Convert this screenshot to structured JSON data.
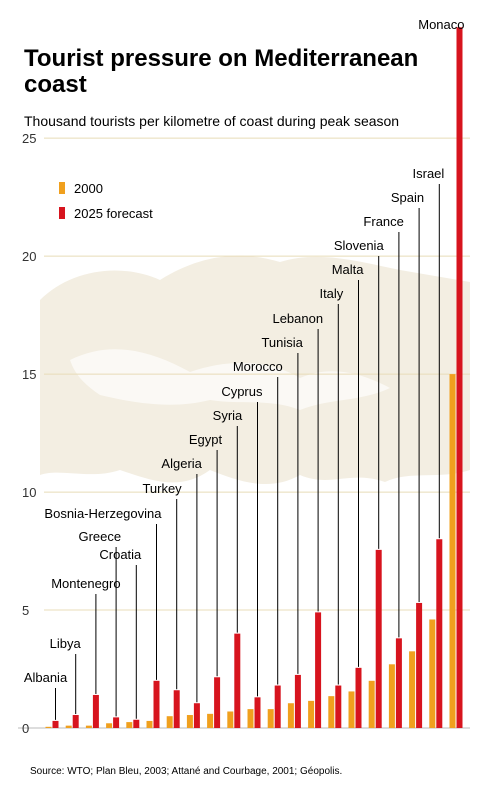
{
  "chart_data": {
    "type": "bar",
    "title": "Tourist pressure on Mediterranean coast",
    "subtitle": "Thousand tourists per kilometre of coast during peak season",
    "source": "Source: WTO; Plan Bleu, 2003; Attané and Courbage, 2001; Géopolis.",
    "ylim": [
      0,
      29.5
    ],
    "yticks": [
      0,
      5,
      10,
      15,
      20,
      25
    ],
    "grid": true,
    "legend_position": "top-left",
    "categories": [
      "Albania",
      "Libya",
      "Montenegro",
      "Greece",
      "Croatia",
      "Bosnia-Herzegovina",
      "Turkey",
      "Algeria",
      "Egypt",
      "Syria",
      "Cyprus",
      "Morocco",
      "Tunisia",
      "Lebanon",
      "Italy",
      "Malta",
      "Slovenia",
      "France",
      "Spain",
      "Israel",
      "Monaco"
    ],
    "series": [
      {
        "name": "2000",
        "color": "#f0a01e",
        "values": [
          0.05,
          0.1,
          0.1,
          0.2,
          0.25,
          0.3,
          0.5,
          0.55,
          0.6,
          0.7,
          0.8,
          0.8,
          1.05,
          1.15,
          1.35,
          1.55,
          2.0,
          2.7,
          3.25,
          4.6,
          15.0
        ]
      },
      {
        "name": "2025 forecast",
        "color": "#d7141e",
        "values": [
          0.3,
          0.55,
          1.4,
          0.45,
          0.35,
          2.0,
          1.6,
          1.05,
          2.15,
          4.0,
          1.3,
          1.8,
          2.25,
          4.9,
          1.8,
          2.55,
          7.55,
          3.8,
          5.3,
          8.0,
          29.7
        ]
      }
    ]
  }
}
